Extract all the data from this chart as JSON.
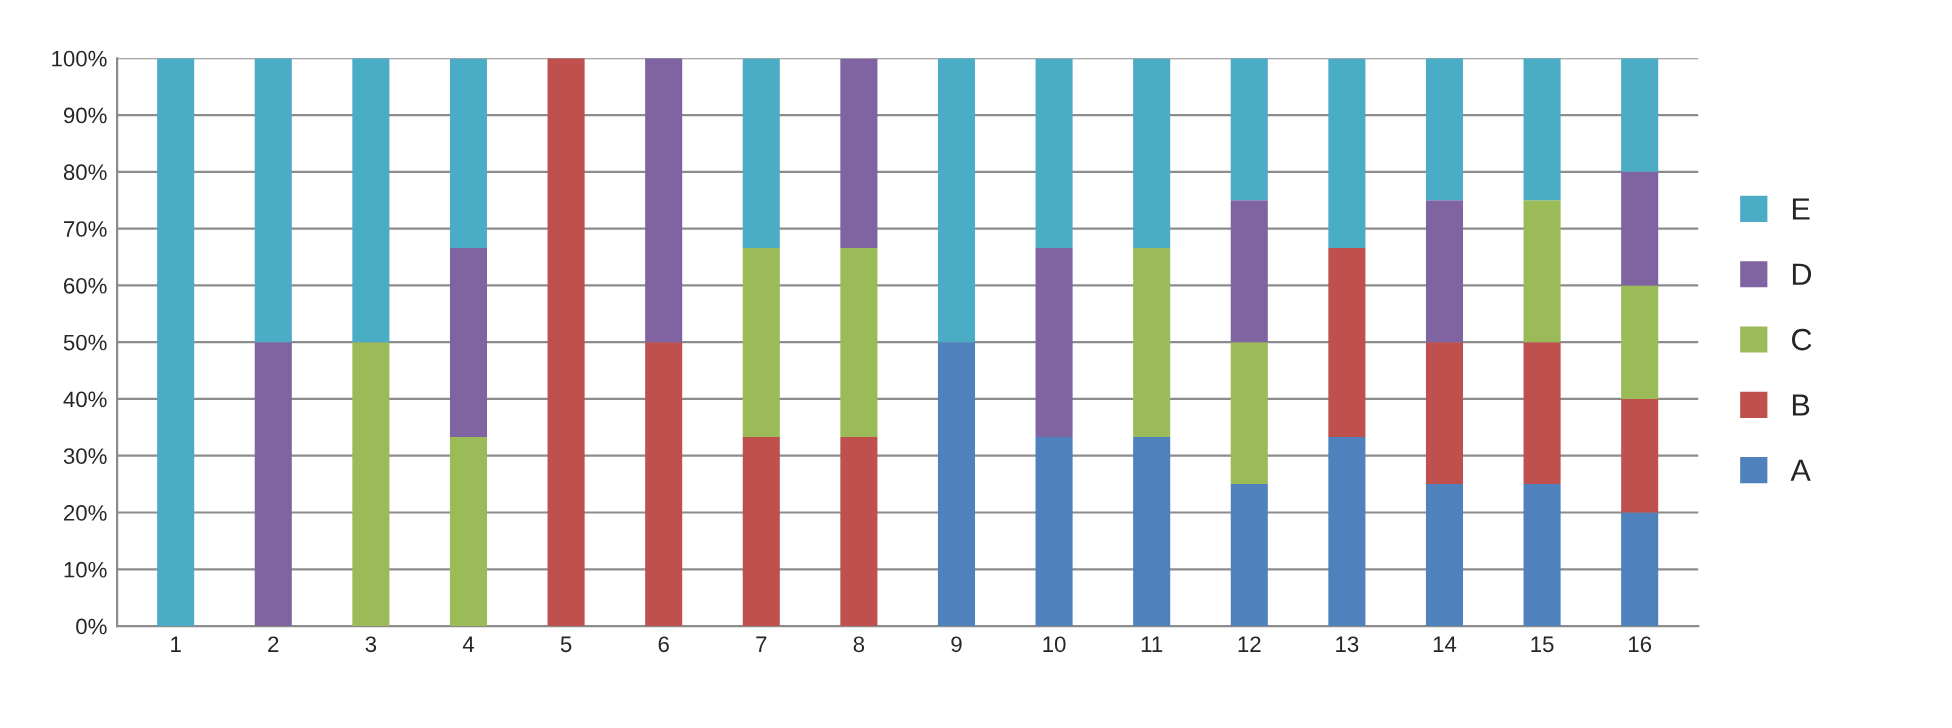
{
  "chart_data": {
    "type": "bar",
    "stacked": true,
    "categories": [
      "1",
      "2",
      "3",
      "4",
      "5",
      "6",
      "7",
      "8",
      "9",
      "10",
      "11",
      "12",
      "13",
      "14",
      "15",
      "16"
    ],
    "series": [
      {
        "name": "A",
        "color": "#4f81bd",
        "values": [
          0,
          0,
          0,
          0,
          0,
          0,
          0,
          0,
          50,
          33.3,
          33.3,
          25,
          33.3,
          25,
          25,
          20
        ]
      },
      {
        "name": "B",
        "color": "#c0504d",
        "values": [
          0,
          0,
          0,
          0,
          100,
          50,
          33.3,
          33.3,
          0,
          0,
          0,
          0,
          33.3,
          25,
          25,
          20
        ]
      },
      {
        "name": "C",
        "color": "#9bbb59",
        "values": [
          0,
          0,
          50,
          33.3,
          0,
          0,
          33.3,
          33.3,
          0,
          0,
          33.3,
          25,
          0,
          0,
          25,
          20
        ]
      },
      {
        "name": "D",
        "color": "#8064a2",
        "values": [
          0,
          50,
          0,
          33.3,
          0,
          50,
          0,
          33.3,
          0,
          33.3,
          0,
          25,
          0,
          25,
          0,
          20
        ]
      },
      {
        "name": "E",
        "color": "#4bacc6",
        "values": [
          100,
          50,
          50,
          33.3,
          0,
          0,
          33.3,
          0,
          50,
          33.3,
          33.3,
          25,
          33.3,
          25,
          25,
          20
        ]
      }
    ],
    "ylim": [
      0,
      100
    ],
    "yticks": [
      {
        "value": 0,
        "label": "0%"
      },
      {
        "value": 10,
        "label": "10%"
      },
      {
        "value": 20,
        "label": "20%"
      },
      {
        "value": 30,
        "label": "30%"
      },
      {
        "value": 40,
        "label": "40%"
      },
      {
        "value": 50,
        "label": "50%"
      },
      {
        "value": 60,
        "label": "60%"
      },
      {
        "value": 70,
        "label": "70%"
      },
      {
        "value": 80,
        "label": "80%"
      },
      {
        "value": 90,
        "label": "90%"
      },
      {
        "value": 100,
        "label": "100%"
      }
    ],
    "grid": "y",
    "legend": "right"
  }
}
